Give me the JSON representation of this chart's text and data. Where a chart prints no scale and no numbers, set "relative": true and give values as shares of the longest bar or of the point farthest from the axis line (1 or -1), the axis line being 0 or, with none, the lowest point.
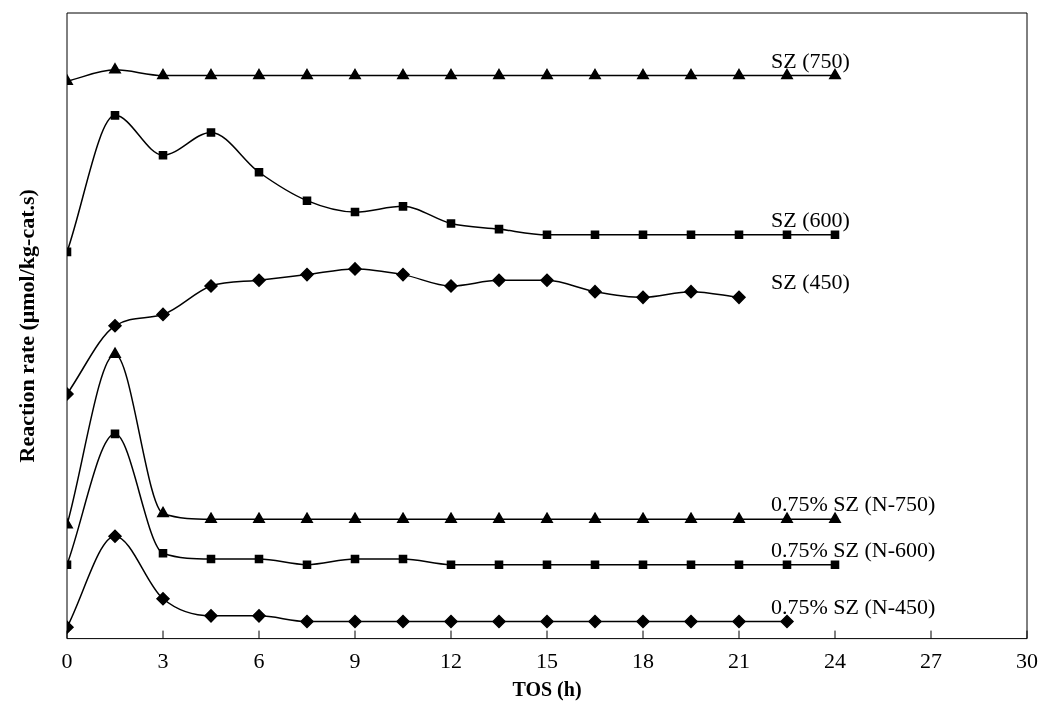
{
  "chart_data": {
    "type": "line",
    "xlabel": "TOS (h)",
    "ylabel": "Reaction rate (μmol/kg-cat.s)",
    "relative": true,
    "xlim": [
      0,
      30
    ],
    "xticks": [
      0,
      3,
      6,
      9,
      12,
      15,
      18,
      21,
      24,
      27,
      30
    ],
    "legend": false,
    "grid": false,
    "line_style": "solid",
    "x": [
      0,
      1.5,
      3,
      4.5,
      6,
      7.5,
      9,
      10.5,
      12,
      13.5,
      15,
      16.5,
      18,
      19.5,
      21,
      22.5,
      24
    ],
    "series": [
      {
        "name": "SZ (750)",
        "color": "#000000",
        "marker": "triangle",
        "values": [
          0.98,
          1.0,
          0.99,
          0.99,
          0.99,
          0.99,
          0.99,
          0.99,
          0.99,
          0.99,
          0.99,
          0.99,
          0.99,
          0.99,
          0.99,
          0.99,
          0.99
        ]
      },
      {
        "name": "SZ (600)",
        "color": "#000000",
        "marker": "square",
        "values": [
          0.68,
          0.92,
          0.85,
          0.89,
          0.82,
          0.77,
          0.75,
          0.76,
          0.73,
          0.72,
          0.71,
          0.71,
          0.71,
          0.71,
          0.71,
          0.71,
          0.71
        ]
      },
      {
        "name": "SZ (450)",
        "color": "#000000",
        "marker": "diamond",
        "values": [
          0.43,
          0.55,
          0.57,
          0.62,
          0.63,
          0.64,
          0.65,
          0.64,
          0.62,
          0.63,
          0.63,
          0.61,
          0.6,
          0.61,
          0.6,
          null,
          null
        ]
      },
      {
        "name": "0.75% SZ (N-750)",
        "color": "#000000",
        "marker": "triangle",
        "values": [
          0.2,
          0.5,
          0.22,
          0.21,
          0.21,
          0.21,
          0.21,
          0.21,
          0.21,
          0.21,
          0.21,
          0.21,
          0.21,
          0.21,
          0.21,
          0.21,
          0.21
        ]
      },
      {
        "name": "0.75% SZ (N-600)",
        "color": "#000000",
        "marker": "square",
        "values": [
          0.13,
          0.36,
          0.15,
          0.14,
          0.14,
          0.13,
          0.14,
          0.14,
          0.13,
          0.13,
          0.13,
          0.13,
          0.13,
          0.13,
          0.13,
          0.13,
          0.13
        ]
      },
      {
        "name": "0.75% SZ (N-450)",
        "color": "#000000",
        "marker": "diamond",
        "values": [
          0.02,
          0.18,
          0.07,
          0.04,
          0.04,
          0.03,
          0.03,
          0.03,
          0.03,
          0.03,
          0.03,
          0.03,
          0.03,
          0.03,
          0.03,
          0.03,
          null
        ]
      }
    ]
  }
}
